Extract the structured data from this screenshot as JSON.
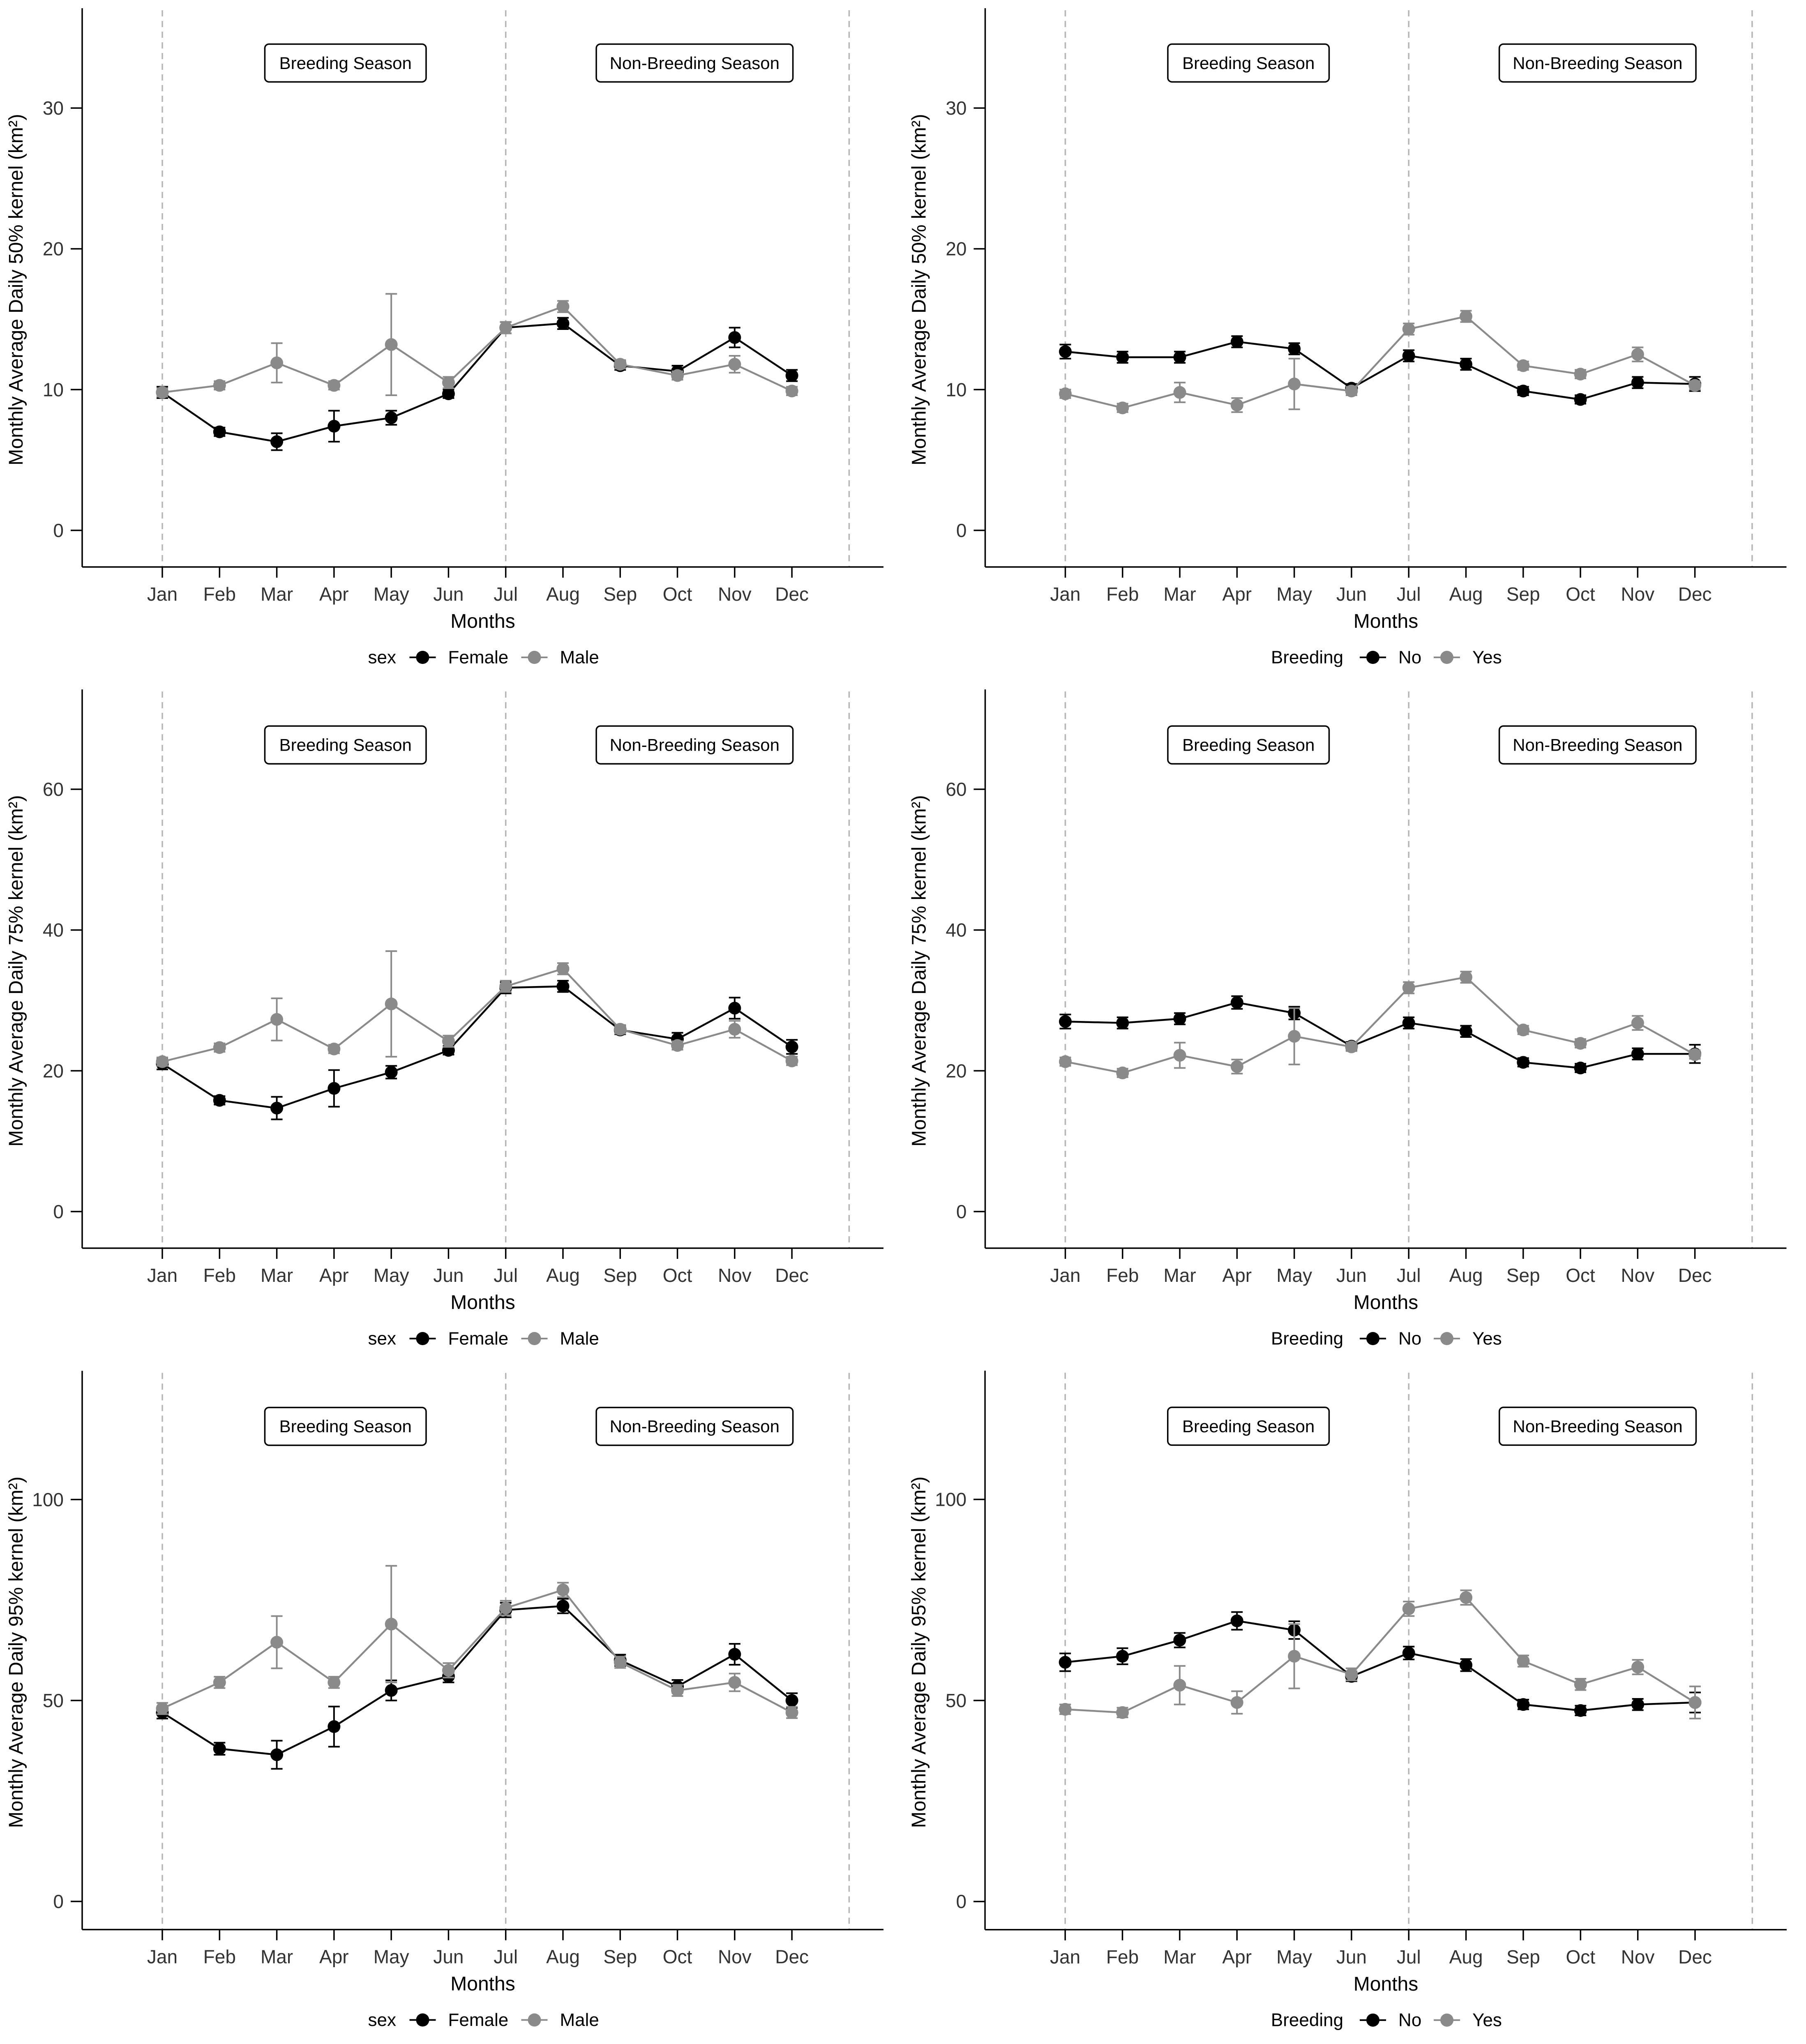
{
  "page": {
    "background": "#ffffff",
    "colors": {
      "black_series": "#000000",
      "gray_series": "#8a8a8a",
      "dashed_line": "#b5b5b5",
      "axis": "#000000",
      "tick_text": "#333333",
      "box_border": "#000000",
      "box_fill": "#ffffff"
    }
  },
  "chart_data": [
    {
      "type": "line",
      "title": "",
      "ylabel": "Monthly Average Daily 50% kernel (km²)",
      "xlabel": "Months",
      "categories": [
        "Jan",
        "Feb",
        "Mar",
        "Apr",
        "May",
        "Jun",
        "Jul",
        "Aug",
        "Sep",
        "Oct",
        "Nov",
        "Dec"
      ],
      "yticks": [
        0,
        10,
        20,
        30
      ],
      "ylim": [
        -2.6,
        36.8
      ],
      "vlines": [
        1,
        7,
        13
      ],
      "grid": false,
      "legend_position": "bottom",
      "legend": {
        "title": "sex",
        "items": [
          {
            "label": "Female",
            "color": "#000000"
          },
          {
            "label": "Male",
            "color": "#8a8a8a"
          }
        ]
      },
      "annotations": [
        {
          "label": "Breeding Season",
          "x": 4.2,
          "y": 33.2
        },
        {
          "label": "Non-Breeding Season",
          "x": 10.3,
          "y": 33.2
        }
      ],
      "series": [
        {
          "name": "Female",
          "color": "#000000",
          "values": [
            9.8,
            7.0,
            6.3,
            7.4,
            8.0,
            9.7,
            14.4,
            14.7,
            11.7,
            11.3,
            13.7,
            11.0
          ],
          "errors": [
            0.4,
            0.3,
            0.6,
            1.1,
            0.5,
            0.3,
            0.4,
            0.4,
            0.3,
            0.4,
            0.7,
            0.4
          ]
        },
        {
          "name": "Male",
          "color": "#8a8a8a",
          "values": [
            9.8,
            10.3,
            11.9,
            10.3,
            13.2,
            10.5,
            14.4,
            15.9,
            11.8,
            11.0,
            11.8,
            9.9
          ],
          "errors": [
            0.3,
            0.3,
            1.4,
            0.3,
            3.6,
            0.4,
            0.4,
            0.4,
            0.3,
            0.3,
            0.6,
            0.3
          ]
        }
      ]
    },
    {
      "type": "line",
      "title": "",
      "ylabel": "Monthly Average Daily 50% kernel (km²)",
      "xlabel": "Months",
      "categories": [
        "Jan",
        "Feb",
        "Mar",
        "Apr",
        "May",
        "Jun",
        "Jul",
        "Aug",
        "Sep",
        "Oct",
        "Nov",
        "Dec"
      ],
      "yticks": [
        0,
        10,
        20,
        30
      ],
      "ylim": [
        -2.6,
        36.8
      ],
      "vlines": [
        1,
        7,
        13
      ],
      "grid": false,
      "legend_position": "bottom",
      "legend": {
        "title": "Breeding",
        "items": [
          {
            "label": "No",
            "color": "#000000"
          },
          {
            "label": "Yes",
            "color": "#8a8a8a"
          }
        ]
      },
      "annotations": [
        {
          "label": "Breeding Season",
          "x": 4.2,
          "y": 33.2
        },
        {
          "label": "Non-Breeding Season",
          "x": 10.3,
          "y": 33.2
        }
      ],
      "series": [
        {
          "name": "No",
          "color": "#000000",
          "values": [
            12.7,
            12.3,
            12.3,
            13.4,
            12.9,
            10.1,
            12.4,
            11.8,
            9.9,
            9.3,
            10.5,
            10.4
          ],
          "errors": [
            0.5,
            0.4,
            0.4,
            0.4,
            0.4,
            0.3,
            0.4,
            0.4,
            0.3,
            0.3,
            0.4,
            0.5
          ]
        },
        {
          "name": "Yes",
          "color": "#8a8a8a",
          "values": [
            9.7,
            8.7,
            9.8,
            8.9,
            10.4,
            9.9,
            14.3,
            15.2,
            11.7,
            11.1,
            12.5,
            10.3
          ],
          "errors": [
            0.3,
            0.3,
            0.7,
            0.5,
            1.8,
            0.3,
            0.4,
            0.4,
            0.3,
            0.3,
            0.5,
            0.3
          ]
        }
      ]
    },
    {
      "type": "line",
      "title": "",
      "ylabel": "Monthly Average Daily 75% kernel (km²)",
      "xlabel": "Months",
      "categories": [
        "Jan",
        "Feb",
        "Mar",
        "Apr",
        "May",
        "Jun",
        "Jul",
        "Aug",
        "Sep",
        "Oct",
        "Nov",
        "Dec"
      ],
      "yticks": [
        0,
        20,
        40,
        60
      ],
      "ylim": [
        -5.2,
        73.6
      ],
      "vlines": [
        1,
        7,
        13
      ],
      "grid": false,
      "legend_position": "bottom",
      "legend": {
        "title": "sex",
        "items": [
          {
            "label": "Female",
            "color": "#000000"
          },
          {
            "label": "Male",
            "color": "#8a8a8a"
          }
        ]
      },
      "annotations": [
        {
          "label": "Breeding Season",
          "x": 4.2,
          "y": 66.3
        },
        {
          "label": "Non-Breeding Season",
          "x": 10.3,
          "y": 66.3
        }
      ],
      "series": [
        {
          "name": "Female",
          "color": "#000000",
          "values": [
            21.0,
            15.8,
            14.7,
            17.5,
            19.8,
            22.9,
            31.8,
            32.0,
            25.8,
            24.5,
            28.9,
            23.4
          ],
          "errors": [
            0.8,
            0.6,
            1.6,
            2.6,
            0.9,
            0.6,
            0.8,
            0.8,
            0.6,
            0.9,
            1.5,
            1.0
          ]
        },
        {
          "name": "Male",
          "color": "#8a8a8a",
          "values": [
            21.3,
            23.3,
            27.3,
            23.1,
            29.5,
            24.2,
            32.0,
            34.5,
            25.9,
            23.6,
            25.9,
            21.4
          ],
          "errors": [
            0.6,
            0.6,
            3.0,
            0.6,
            7.5,
            0.8,
            0.8,
            0.8,
            0.6,
            0.6,
            1.2,
            0.6
          ]
        }
      ]
    },
    {
      "type": "line",
      "title": "",
      "ylabel": "Monthly Average Daily 75% kernel (km²)",
      "xlabel": "Months",
      "categories": [
        "Jan",
        "Feb",
        "Mar",
        "Apr",
        "May",
        "Jun",
        "Jul",
        "Aug",
        "Sep",
        "Oct",
        "Nov",
        "Dec"
      ],
      "yticks": [
        0,
        20,
        40,
        60
      ],
      "ylim": [
        -5.2,
        73.6
      ],
      "vlines": [
        1,
        7,
        13
      ],
      "grid": false,
      "legend_position": "bottom",
      "legend": {
        "title": "Breeding",
        "items": [
          {
            "label": "No",
            "color": "#000000"
          },
          {
            "label": "Yes",
            "color": "#8a8a8a"
          }
        ]
      },
      "annotations": [
        {
          "label": "Breeding Season",
          "x": 4.2,
          "y": 66.3
        },
        {
          "label": "Non-Breeding Season",
          "x": 10.3,
          "y": 66.3
        }
      ],
      "series": [
        {
          "name": "No",
          "color": "#000000",
          "values": [
            27.0,
            26.8,
            27.4,
            29.7,
            28.2,
            23.5,
            26.8,
            25.6,
            21.2,
            20.4,
            22.4,
            22.4
          ],
          "errors": [
            1.0,
            0.8,
            0.8,
            0.9,
            0.9,
            0.6,
            0.8,
            0.8,
            0.6,
            0.6,
            0.8,
            1.3
          ]
        },
        {
          "name": "Yes",
          "color": "#8a8a8a",
          "values": [
            21.3,
            19.7,
            22.2,
            20.6,
            24.9,
            23.4,
            31.8,
            33.3,
            25.8,
            23.9,
            26.8,
            22.3
          ],
          "errors": [
            0.6,
            0.6,
            1.8,
            1.0,
            4.0,
            0.6,
            0.8,
            0.8,
            0.6,
            0.6,
            1.0,
            0.6
          ]
        }
      ]
    },
    {
      "type": "line",
      "title": "",
      "ylabel": "Monthly Average Daily 95% kernel (km²)",
      "xlabel": "Months",
      "categories": [
        "Jan",
        "Feb",
        "Mar",
        "Apr",
        "May",
        "Jun",
        "Jul",
        "Aug",
        "Sep",
        "Oct",
        "Nov",
        "Dec"
      ],
      "yticks": [
        0,
        50,
        100
      ],
      "ylim": [
        -7,
        131
      ],
      "vlines": [
        1,
        7,
        13
      ],
      "grid": false,
      "legend_position": "bottom",
      "legend": {
        "title": "sex",
        "items": [
          {
            "label": "Female",
            "color": "#000000"
          },
          {
            "label": "Male",
            "color": "#8a8a8a"
          }
        ]
      },
      "annotations": [
        {
          "label": "Breeding Season",
          "x": 4.2,
          "y": 118.2
        },
        {
          "label": "Non-Breeding Season",
          "x": 10.3,
          "y": 118.2
        }
      ],
      "series": [
        {
          "name": "Female",
          "color": "#000000",
          "values": [
            47.0,
            38.0,
            36.5,
            43.5,
            52.5,
            56.0,
            72.5,
            73.5,
            60.0,
            53.5,
            61.5,
            50.0
          ],
          "errors": [
            1.5,
            1.5,
            3.5,
            5.0,
            2.5,
            1.5,
            1.8,
            1.8,
            1.4,
            1.6,
            2.6,
            1.8
          ]
        },
        {
          "name": "Male",
          "color": "#8a8a8a",
          "values": [
            48.0,
            54.5,
            64.5,
            54.5,
            69.0,
            57.5,
            73.0,
            77.5,
            59.5,
            52.5,
            54.5,
            47.0
          ],
          "errors": [
            1.4,
            1.4,
            6.5,
            1.4,
            14.5,
            1.8,
            1.8,
            1.8,
            1.4,
            1.4,
            2.2,
            1.4
          ]
        }
      ]
    },
    {
      "type": "line",
      "title": "",
      "ylabel": "Monthly Average Daily 95% kernel (km²)",
      "xlabel": "Months",
      "categories": [
        "Jan",
        "Feb",
        "Mar",
        "Apr",
        "May",
        "Jun",
        "Jul",
        "Aug",
        "Sep",
        "Oct",
        "Nov",
        "Dec"
      ],
      "yticks": [
        0,
        50,
        100
      ],
      "ylim": [
        -7,
        131
      ],
      "vlines": [
        1,
        7,
        13
      ],
      "grid": false,
      "legend_position": "bottom",
      "legend": {
        "title": "Breeding",
        "items": [
          {
            "label": "No",
            "color": "#000000"
          },
          {
            "label": "Yes",
            "color": "#8a8a8a"
          }
        ]
      },
      "annotations": [
        {
          "label": "Breeding Season",
          "x": 4.2,
          "y": 118.2
        },
        {
          "label": "Non-Breeding Season",
          "x": 10.3,
          "y": 118.2
        }
      ],
      "series": [
        {
          "name": "No",
          "color": "#000000",
          "values": [
            59.5,
            61.0,
            65.0,
            69.8,
            67.5,
            56.0,
            61.8,
            58.8,
            49.0,
            47.5,
            49.0,
            49.5
          ],
          "errors": [
            2.2,
            2.0,
            1.8,
            2.2,
            2.2,
            1.2,
            1.6,
            1.5,
            1.2,
            1.2,
            1.4,
            2.5
          ]
        },
        {
          "name": "Yes",
          "color": "#8a8a8a",
          "values": [
            47.8,
            47.0,
            53.8,
            49.5,
            61.0,
            56.5,
            72.8,
            75.6,
            59.8,
            54.0,
            58.3,
            49.5
          ],
          "errors": [
            1.2,
            1.2,
            4.8,
            2.8,
            8.0,
            1.5,
            1.8,
            1.8,
            1.4,
            1.4,
            1.8,
            4.0
          ]
        }
      ]
    }
  ]
}
